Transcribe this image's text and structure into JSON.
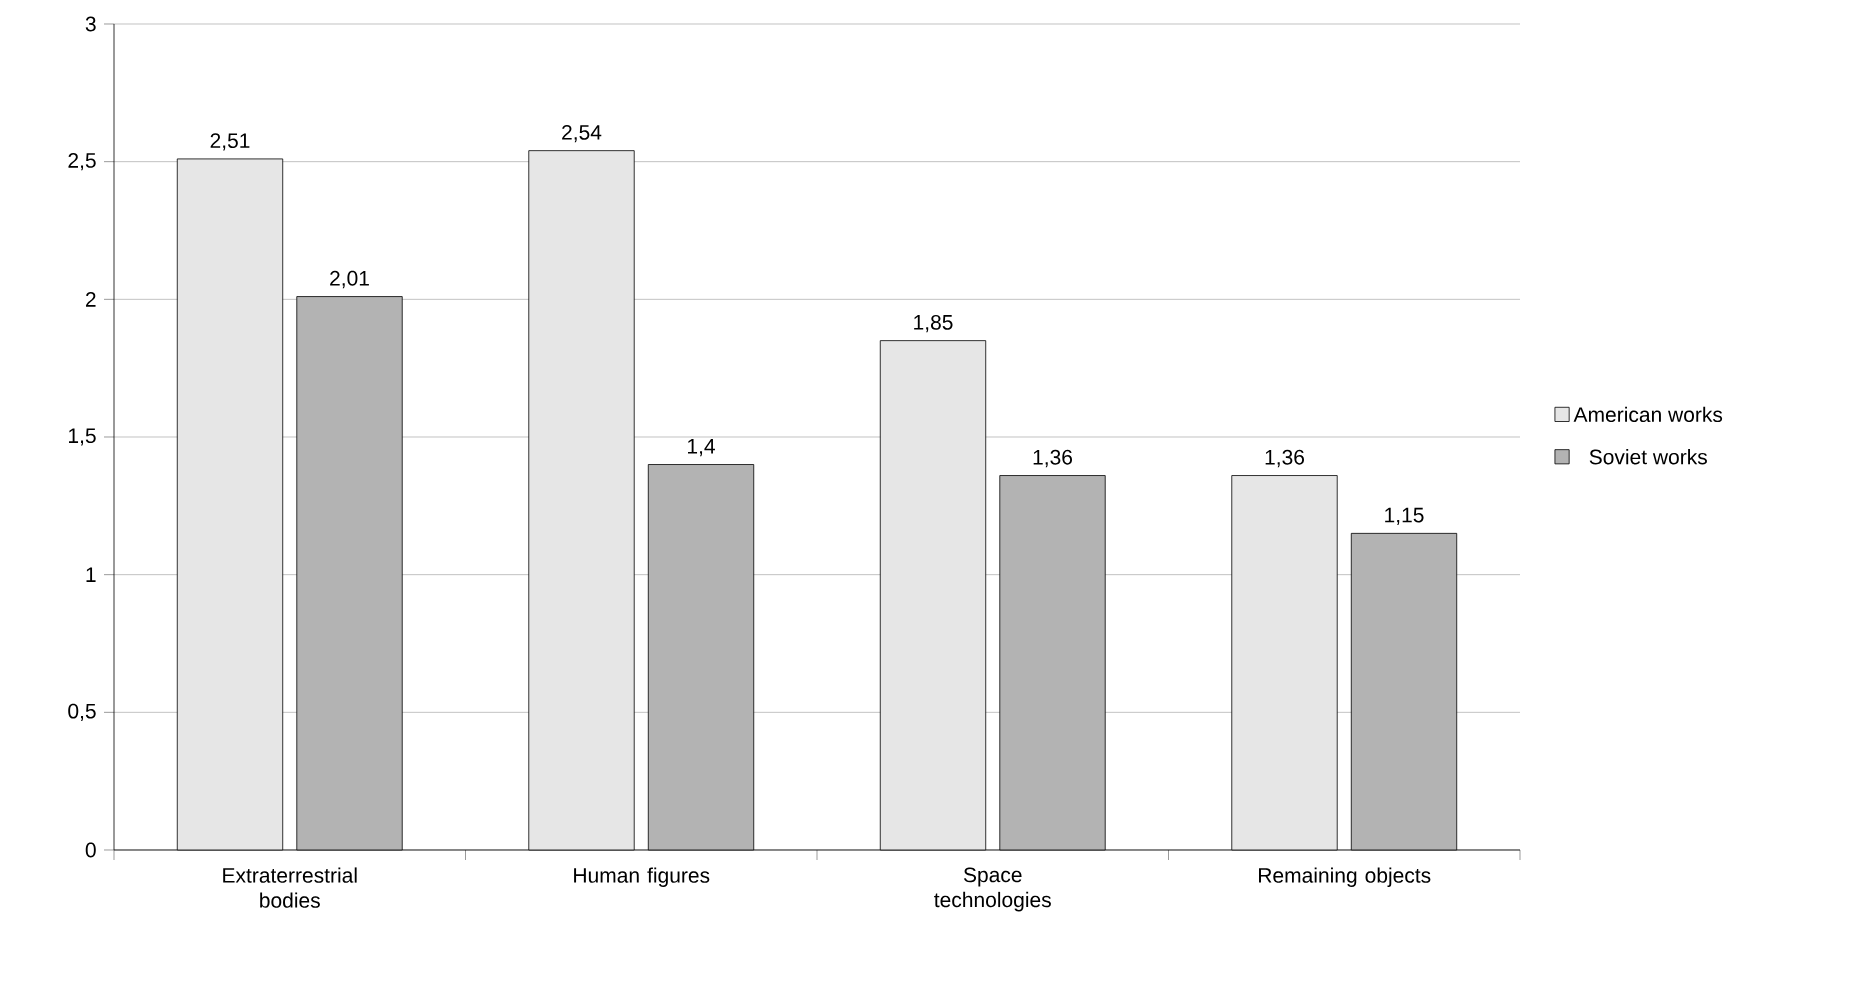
{
  "chart_data": {
    "type": "bar",
    "categories": [
      "Extraterrestrial bodies",
      "Human figures",
      "Space technologies",
      "Remaining objects"
    ],
    "series": [
      {
        "name": "American works",
        "color": "#e6e6e6",
        "values": [
          2.51,
          2.54,
          1.85,
          1.36
        ],
        "value_labels": [
          "2,51",
          "2,54",
          "1,85",
          "1,36"
        ]
      },
      {
        "name": "Soviet works",
        "color": "#b3b3b3",
        "values": [
          2.01,
          1.4,
          1.36,
          1.15
        ],
        "value_labels": [
          "2,01",
          "1,4",
          "1,36",
          "1,15"
        ]
      }
    ],
    "ylim": [
      0,
      3
    ],
    "yticks": [
      0,
      {
        "value": 0.5,
        "label": "0,5"
      },
      1,
      {
        "value": 1.5,
        "label": "1,5"
      },
      2,
      {
        "value": 2.5,
        "label": "2,5"
      },
      3
    ],
    "grid": "y",
    "legend": "right"
  }
}
